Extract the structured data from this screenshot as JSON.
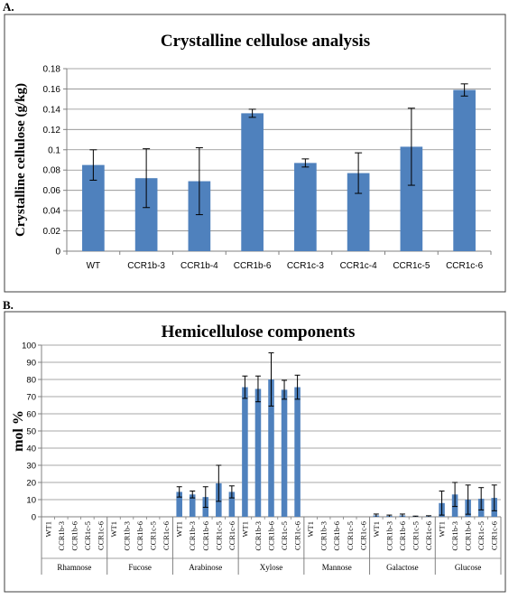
{
  "panel_labels": {
    "a": "A.",
    "b": "B."
  },
  "colors": {
    "bar": "#4f81bd",
    "grid": "#8a8a8a",
    "axis": "#808080",
    "frame": "#3f3f3f",
    "error": "#000000"
  },
  "chart_data": [
    {
      "type": "bar",
      "title": "Crystalline cellulose analysis",
      "ylabel": "Crystalline cellulose (g/kg)",
      "xlabel": "",
      "ylim": [
        0,
        0.18
      ],
      "yticks": [
        "0",
        "0.02",
        "0.04",
        "0.06",
        "0.08",
        "0.1",
        "0.12",
        "0.14",
        "0.16",
        "0.18"
      ],
      "grid": true,
      "categories": [
        "WT",
        "CCR1b-3",
        "CCR1b-4",
        "CCR1b-6",
        "CCR1c-3",
        "CCR1c-4",
        "CCR1c-5",
        "CCR1c-6"
      ],
      "values": [
        0.085,
        0.072,
        0.069,
        0.136,
        0.087,
        0.077,
        0.103,
        0.159
      ],
      "error": [
        0.015,
        0.029,
        0.033,
        0.004,
        0.004,
        0.02,
        0.038,
        0.006
      ]
    },
    {
      "type": "bar",
      "title": "Hemicellulose components",
      "ylabel": "mol %",
      "xlabel": "",
      "ylim": [
        0,
        100
      ],
      "yticks": [
        "0",
        "10",
        "20",
        "30",
        "40",
        "50",
        "60",
        "70",
        "80",
        "90",
        "100"
      ],
      "grid": true,
      "groups": [
        "Rhamnose",
        "Fucose",
        "Arabinose",
        "Xylose",
        "Mannose",
        "Galactose",
        "Glucose"
      ],
      "sub_categories": [
        "WT1",
        "CCR1b-3",
        "CCR1b-6",
        "CCR1c-5",
        "CCR1c-6"
      ],
      "values": [
        [
          0,
          0,
          0,
          0,
          0
        ],
        [
          0,
          0,
          0,
          0,
          0
        ],
        [
          14.5,
          13,
          11.5,
          19.5,
          14.5
        ],
        [
          75.5,
          74.5,
          80,
          74,
          75.5
        ],
        [
          0,
          0,
          0,
          0,
          0
        ],
        [
          0.8,
          0.5,
          0.8,
          0.2,
          0.3
        ],
        [
          8,
          13,
          10,
          10.5,
          11
        ]
      ],
      "error": [
        [
          0,
          0,
          0,
          0,
          0
        ],
        [
          0,
          0,
          0,
          0,
          0
        ],
        [
          3,
          2,
          6,
          10.5,
          3.5
        ],
        [
          6.5,
          7.5,
          15.5,
          5.5,
          7
        ],
        [
          0,
          0,
          0,
          0,
          0
        ],
        [
          0.8,
          0.5,
          0.8,
          0.2,
          0.3
        ],
        [
          7,
          7,
          8.5,
          6.5,
          7.5
        ]
      ]
    }
  ]
}
